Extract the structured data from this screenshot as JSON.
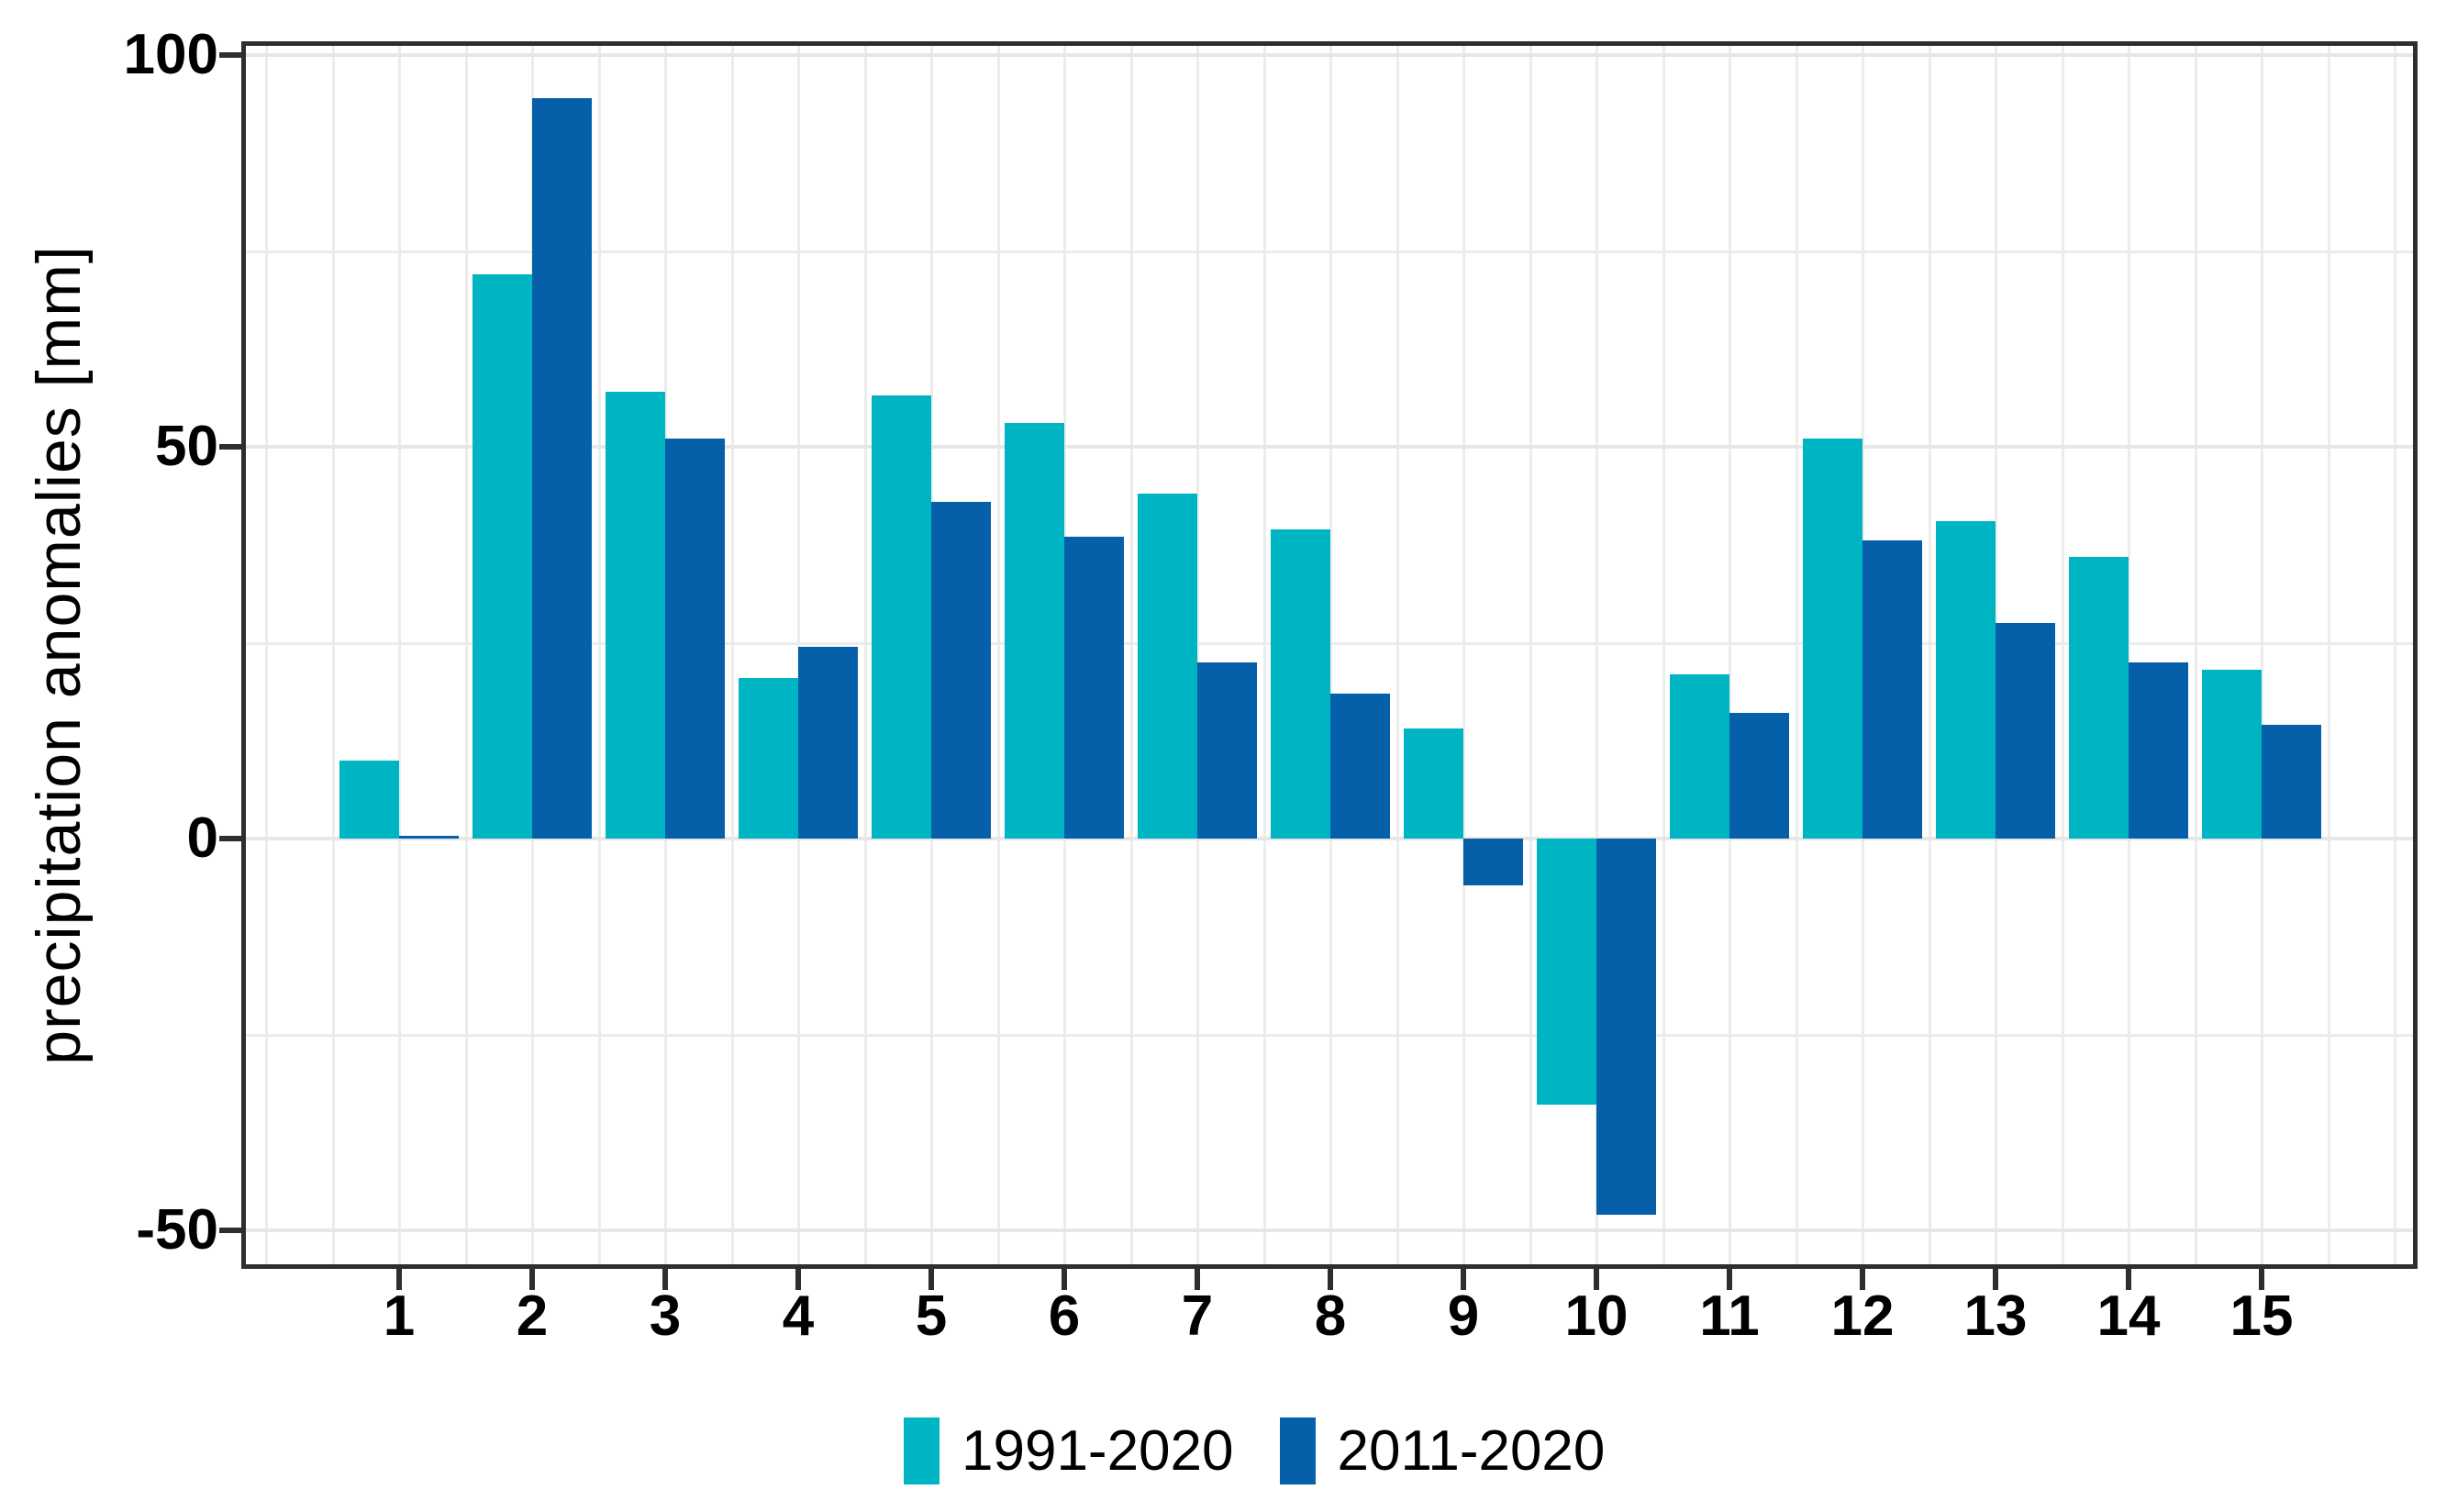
{
  "chart_data": {
    "type": "bar",
    "title": "",
    "xlabel": "",
    "ylabel": "precipitation anomalies [mm]",
    "categories": [
      "1",
      "2",
      "3",
      "4",
      "5",
      "6",
      "7",
      "8",
      "9",
      "10",
      "11",
      "12",
      "13",
      "14",
      "15"
    ],
    "series": [
      {
        "name": "1991-2020",
        "color": "#00b5c3",
        "values": [
          10,
          72,
          57,
          20.5,
          56.5,
          53,
          44,
          39.5,
          14,
          -34,
          21,
          51,
          40.5,
          36,
          21.5
        ]
      },
      {
        "name": "2011-2020",
        "color": "#0560a9",
        "values": [
          0.3,
          94.5,
          51,
          24.5,
          43,
          38.5,
          22.5,
          18.5,
          -6,
          -48,
          16,
          38,
          27.5,
          22.5,
          14.5
        ]
      }
    ],
    "y_major_ticks": [
      100,
      50,
      0,
      -50
    ],
    "y_minor_ticks": [
      75,
      25,
      -25
    ],
    "ylim": [
      -55,
      102
    ],
    "grid": "on",
    "legend_position": "bottom-center",
    "panel_border_color": "#2e2e2e",
    "gridline_color": "#ececec"
  }
}
